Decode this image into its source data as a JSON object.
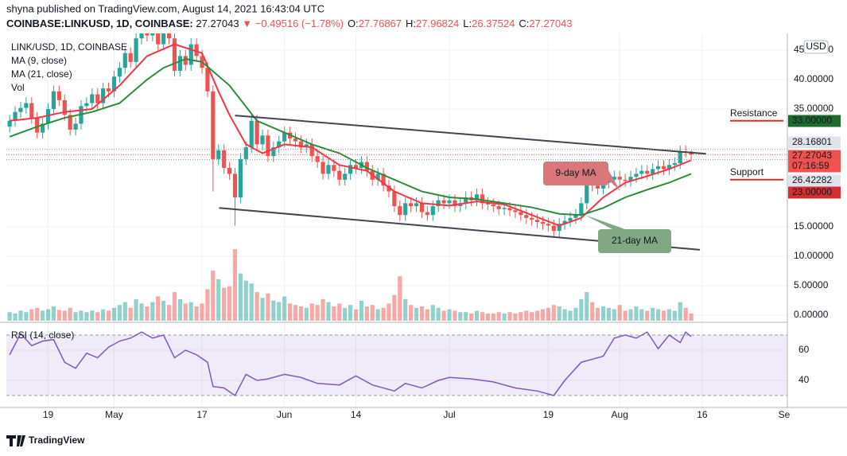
{
  "header": {
    "publisher": "shyna published on TradingView.com, August 14, 2021 16:43:04 UTC",
    "symbol": "COINBASE:LINKUSD, 1D, COINBASE:",
    "last": 27.27043,
    "arrow": "▼",
    "change": "−0.49516 (−1.78%)",
    "ohlc": [
      {
        "label": "O:",
        "value": 27.76867
      },
      {
        "label": "H:",
        "value": 27.96824
      },
      {
        "label": "L:",
        "value": 26.37524
      },
      {
        "label": "C:",
        "value": 27.27043
      }
    ]
  },
  "chart_data": {
    "type": "candlestick",
    "title": "LINK/USD, 1D, COINBASE",
    "currency": "USD",
    "ylim": [
      -0.95,
      47.84
    ],
    "yticks": [
      {
        "value": 45,
        "label": "45.00000"
      },
      {
        "value": 40,
        "label": "40.00000"
      },
      {
        "value": 35,
        "label": "35.00000"
      },
      {
        "value": 15,
        "label": "15.00000"
      },
      {
        "value": 10,
        "label": "10.00000"
      },
      {
        "value": 5,
        "label": "5.00000"
      },
      {
        "value": 0,
        "label": "0.00000"
      }
    ],
    "xlim": [
      -0.6,
      141.5
    ],
    "xticks": [
      {
        "value": 7,
        "label": "19"
      },
      {
        "value": 19,
        "label": "May"
      },
      {
        "value": 35,
        "label": "17"
      },
      {
        "value": 50,
        "label": "Jun"
      },
      {
        "value": 63,
        "label": "14"
      },
      {
        "value": 80,
        "label": "Jul"
      },
      {
        "value": 98,
        "label": "19"
      },
      {
        "value": 111,
        "label": "Aug"
      },
      {
        "value": 126,
        "label": "16"
      },
      {
        "value": 142,
        "label": "Se"
      }
    ],
    "up_color": "#26a69a",
    "down_color": "#ef5350",
    "candles": [
      [
        32,
        34,
        31,
        33
      ],
      [
        33,
        35.5,
        32,
        34.5
      ],
      [
        34.5,
        36.2,
        33.5,
        35.2
      ],
      [
        35.2,
        37,
        34.2,
        36
      ],
      [
        36,
        37,
        32.5,
        33.5
      ],
      [
        33.5,
        34.5,
        30,
        31
      ],
      [
        31,
        33.5,
        30,
        32.5
      ],
      [
        32.5,
        36,
        31.5,
        35
      ],
      [
        35,
        39,
        34,
        38
      ],
      [
        38,
        39,
        35.5,
        36.5
      ],
      [
        36.5,
        37.5,
        33,
        34
      ],
      [
        34,
        35,
        30.5,
        31.5
      ],
      [
        31.5,
        33.5,
        30.5,
        32.5
      ],
      [
        32.5,
        36.5,
        31.5,
        35.5
      ],
      [
        35.5,
        37,
        34.5,
        36
      ],
      [
        36,
        38.5,
        35,
        37.5
      ],
      [
        37.5,
        38.5,
        35,
        36
      ],
      [
        36,
        39.5,
        35,
        38.5
      ],
      [
        38.5,
        39.5,
        37,
        38
      ],
      [
        38,
        41.5,
        37,
        40.5
      ],
      [
        40.5,
        43,
        39.5,
        42
      ],
      [
        42,
        45.5,
        41,
        44.5
      ],
      [
        44.5,
        45.5,
        42,
        43
      ],
      [
        43,
        48,
        42,
        47
      ],
      [
        47,
        49.5,
        46,
        48.5
      ],
      [
        48.5,
        49.5,
        46.5,
        47.5
      ],
      [
        47.5,
        50,
        46.5,
        49
      ],
      [
        49,
        50,
        45,
        46
      ],
      [
        46,
        49,
        45,
        48
      ],
      [
        48,
        49,
        46,
        47
      ],
      [
        47,
        48,
        40.5,
        41.5
      ],
      [
        41.5,
        45,
        40.5,
        44
      ],
      [
        44,
        45,
        41.5,
        42.5
      ],
      [
        42.5,
        47,
        41.5,
        46
      ],
      [
        46,
        47,
        43,
        44
      ],
      [
        44,
        45,
        41,
        42
      ],
      [
        42,
        43,
        37,
        38
      ],
      [
        38,
        39,
        21,
        26.5
      ],
      [
        26.5,
        29,
        25.5,
        28
      ],
      [
        28,
        29,
        24,
        25
      ],
      [
        25,
        26,
        23,
        24
      ],
      [
        24,
        25,
        15.2,
        20
      ],
      [
        20,
        27.5,
        19,
        26.5
      ],
      [
        26.5,
        29.5,
        25.5,
        28.5
      ],
      [
        28.5,
        34,
        27.5,
        33
      ],
      [
        33,
        34,
        28,
        29
      ],
      [
        29,
        31.5,
        28,
        30.5
      ],
      [
        30.5,
        31.5,
        26,
        27
      ],
      [
        27,
        29.5,
        26,
        28.5
      ],
      [
        28.5,
        30.5,
        27.5,
        29.5
      ],
      [
        29.5,
        32,
        28.5,
        31
      ],
      [
        31,
        32,
        29,
        30
      ],
      [
        30,
        31,
        28.5,
        29.5
      ],
      [
        29.5,
        30.5,
        27.5,
        28.5
      ],
      [
        28.5,
        30,
        27.5,
        29
      ],
      [
        29,
        30,
        26,
        27
      ],
      [
        27,
        28,
        25,
        26
      ],
      [
        26,
        27,
        23,
        24
      ],
      [
        24,
        26.5,
        23,
        25.5
      ],
      [
        25.5,
        26.5,
        23.5,
        24.5
      ],
      [
        24.5,
        25.5,
        22,
        23
      ],
      [
        23,
        25,
        22,
        24
      ],
      [
        24,
        26.5,
        23,
        25.5
      ],
      [
        25.5,
        26.5,
        24,
        25
      ],
      [
        25,
        27,
        24,
        26
      ],
      [
        26,
        27,
        23.5,
        24.5
      ],
      [
        24.5,
        25.5,
        22,
        23
      ],
      [
        23,
        25,
        22,
        24
      ],
      [
        24,
        25,
        21,
        22
      ],
      [
        22,
        23,
        20,
        21
      ],
      [
        21,
        22,
        17.5,
        18.5
      ],
      [
        18.5,
        19.5,
        16,
        17
      ],
      [
        17,
        20,
        16,
        19
      ],
      [
        19,
        20,
        17.5,
        18.5
      ],
      [
        18.5,
        20,
        17.5,
        19
      ],
      [
        19,
        20,
        16.5,
        17.5
      ],
      [
        17.5,
        18.5,
        16,
        17
      ],
      [
        17,
        19.5,
        16,
        18.5
      ],
      [
        18.5,
        20.5,
        17.5,
        19.5
      ],
      [
        19.5,
        20.5,
        18,
        19
      ],
      [
        19,
        20.5,
        18,
        19.5
      ],
      [
        19.5,
        20.5,
        17.5,
        18.5
      ],
      [
        18.5,
        20,
        17.5,
        19
      ],
      [
        19,
        21,
        18,
        20
      ],
      [
        20,
        21,
        18.5,
        19.5
      ],
      [
        19.5,
        21.5,
        18.5,
        20.5
      ],
      [
        20.5,
        21.5,
        18,
        19
      ],
      [
        19,
        20,
        17.8,
        18.8
      ],
      [
        18.8,
        19.8,
        17.5,
        18.5
      ],
      [
        18.5,
        19.5,
        17,
        18
      ],
      [
        18,
        19.2,
        17,
        18.2
      ],
      [
        18.2,
        19.2,
        16.8,
        17.8
      ],
      [
        17.8,
        18.8,
        16.5,
        17.5
      ],
      [
        17.5,
        18.5,
        16,
        17
      ],
      [
        17,
        18,
        15.5,
        16.5
      ],
      [
        16.5,
        17.5,
        15.2,
        16.2
      ],
      [
        16.2,
        17.2,
        14.8,
        15.8
      ],
      [
        15.8,
        16.8,
        14.5,
        15.5
      ],
      [
        15.5,
        16.5,
        14.2,
        15.2
      ],
      [
        15.2,
        16.2,
        13.3,
        14.3
      ],
      [
        14.3,
        16.5,
        13.3,
        15.5
      ],
      [
        15.5,
        17,
        14.5,
        16
      ],
      [
        16,
        17.5,
        15,
        16.5
      ],
      [
        16.5,
        18,
        15.5,
        17
      ],
      [
        17,
        20,
        16,
        19
      ],
      [
        19,
        23.5,
        18,
        22.5
      ],
      [
        22.5,
        23.5,
        21,
        22
      ],
      [
        22,
        23,
        20.5,
        21.5
      ],
      [
        21.5,
        23.5,
        20.5,
        22.5
      ],
      [
        22.5,
        24,
        21.5,
        23
      ],
      [
        23,
        24.5,
        22,
        23.5
      ],
      [
        23.5,
        24.5,
        22,
        23
      ],
      [
        23,
        24,
        21.8,
        22.8
      ],
      [
        22.8,
        24.5,
        21.8,
        23.5
      ],
      [
        23.5,
        25,
        22.5,
        24
      ],
      [
        24,
        25.5,
        23,
        24.5
      ],
      [
        24.5,
        25.5,
        23,
        24
      ],
      [
        24,
        25.8,
        23,
        24.8
      ],
      [
        24.8,
        26.3,
        23.8,
        25.3
      ],
      [
        25.3,
        26.3,
        23.8,
        24.8
      ],
      [
        24.8,
        26.5,
        23.8,
        25.5
      ],
      [
        25.5,
        26.8,
        24.5,
        25.8
      ],
      [
        25.8,
        28.8,
        24.8,
        27.8
      ],
      [
        27.8,
        28.8,
        26.8,
        27.77
      ],
      [
        27.76867,
        27.96824,
        26.37524,
        27.27043
      ]
    ],
    "volume_name": "Vol",
    "volume": [
      12,
      10,
      14,
      12,
      16,
      18,
      14,
      16,
      20,
      15,
      14,
      18,
      12,
      14,
      12,
      14,
      12,
      16,
      14,
      18,
      22,
      26,
      18,
      30,
      24,
      20,
      26,
      34,
      28,
      22,
      40,
      30,
      24,
      26,
      20,
      24,
      44,
      70,
      58,
      46,
      48,
      100,
      66,
      56,
      52,
      40,
      32,
      38,
      28,
      26,
      34,
      24,
      22,
      20,
      18,
      24,
      22,
      30,
      26,
      20,
      24,
      18,
      22,
      16,
      28,
      20,
      22,
      16,
      18,
      24,
      36,
      62,
      30,
      22,
      18,
      20,
      16,
      22,
      18,
      14,
      16,
      14,
      12,
      12,
      10,
      14,
      12,
      10,
      10,
      12,
      10,
      12,
      10,
      12,
      14,
      12,
      14,
      16,
      18,
      22,
      20,
      16,
      14,
      18,
      30,
      40,
      26,
      18,
      20,
      18,
      16,
      22,
      14,
      16,
      20,
      16,
      14,
      18,
      16,
      14,
      16,
      14,
      26,
      18,
      10
    ],
    "series": [
      {
        "name": "MA (9, close)",
        "color": "#f23645",
        "x": [
          0,
          5,
          10,
          15,
          20,
          25,
          30,
          35,
          38,
          40,
          43,
          46,
          50,
          55,
          60,
          65,
          70,
          75,
          80,
          85,
          90,
          95,
          100,
          104,
          108,
          112,
          116,
          120,
          124
        ],
        "values": [
          33,
          33.5,
          34.5,
          35,
          39,
          44,
          46,
          44.5,
          38,
          34,
          29,
          27.5,
          29,
          28.5,
          25.5,
          24.5,
          21,
          19,
          18.6,
          19.3,
          18.8,
          17,
          15.2,
          16.5,
          20,
          22.5,
          23.6,
          24.8,
          26.3
        ]
      },
      {
        "name": "MA (21, close)",
        "color": "#2e8b3a",
        "x": [
          0,
          5,
          10,
          15,
          20,
          25,
          28,
          32,
          35,
          40,
          45,
          50,
          55,
          60,
          65,
          70,
          75,
          80,
          85,
          90,
          95,
          100,
          104,
          108,
          112,
          116,
          120,
          124
        ],
        "values": [
          30.3,
          32,
          33.5,
          34.5,
          36,
          40,
          42,
          43.5,
          43,
          39,
          33,
          31,
          29,
          27.5,
          25,
          23,
          21,
          20,
          19.7,
          19,
          18.3,
          17.2,
          17,
          18.2,
          20,
          21.3,
          22.5,
          24
        ]
      }
    ],
    "trendlines": [
      {
        "x": [
          41,
          126.7
        ],
        "y": [
          33.9,
          27.4
        ]
      },
      {
        "x": [
          38.1,
          125.6
        ],
        "y": [
          18.2,
          11.1
        ]
      }
    ],
    "price_labels": [
      {
        "value": 33,
        "label": "33.00000",
        "color": "#1e6b2f"
      },
      {
        "value": 28.16801,
        "label": "28.16801",
        "color": "#e0e3eb"
      },
      {
        "value": 27.27043,
        "label": "27.27043",
        "sub": "07:16:59",
        "color": "#ef5350"
      },
      {
        "value": 26.42282,
        "label": "26.42282",
        "color": "#e0e3eb"
      },
      {
        "value": 23,
        "label": "23.00000",
        "color": "#d32f2f"
      }
    ],
    "levels": [
      {
        "value": 33,
        "text": "Resistance",
        "color": "#b71c1c"
      },
      {
        "value": 23,
        "text": "Support",
        "color": "#1e6b2f"
      }
    ],
    "annotations": [
      {
        "text": "9-day MA",
        "color": "#d9777a"
      },
      {
        "text": "21-day MA",
        "color": "#7fa883"
      }
    ],
    "rsi": {
      "name": "RSI (14, close)",
      "color": "#7e57c2",
      "ylim": [
        22.1,
        77.4
      ],
      "yticks": [
        60,
        40
      ],
      "bands": [
        70,
        30
      ],
      "x": [
        0,
        2,
        4,
        6,
        8,
        10,
        12,
        14,
        16,
        18,
        20,
        22,
        24,
        26,
        28,
        30,
        32,
        34,
        36,
        37,
        39,
        41,
        43,
        45,
        47,
        50,
        53,
        56,
        60,
        63,
        66,
        70,
        72,
        75,
        78,
        80,
        84,
        88,
        92,
        96,
        99,
        101,
        104,
        106,
        108,
        110,
        112,
        114,
        116,
        118,
        120,
        122,
        123,
        124
      ],
      "values": [
        57,
        71,
        63,
        66,
        67,
        52,
        48,
        58,
        55,
        62,
        66,
        68,
        72,
        68,
        70,
        55,
        60,
        57,
        52,
        36,
        35,
        30,
        44,
        40,
        41,
        44,
        42,
        38,
        37,
        43,
        37,
        33,
        38,
        35,
        40,
        42,
        41,
        39,
        35,
        33,
        30,
        40,
        52,
        54,
        56,
        68,
        70,
        68,
        72,
        61,
        70,
        65,
        72,
        69
      ]
    }
  },
  "footer": {
    "brand": "TradingView"
  }
}
